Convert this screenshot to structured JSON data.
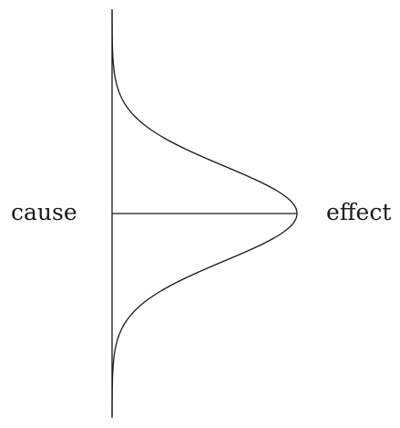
{
  "labels": {
    "cause": "cause",
    "effect": "effect"
  },
  "colors": {
    "stroke": "#1a1a1a",
    "background": "#ffffff"
  }
}
